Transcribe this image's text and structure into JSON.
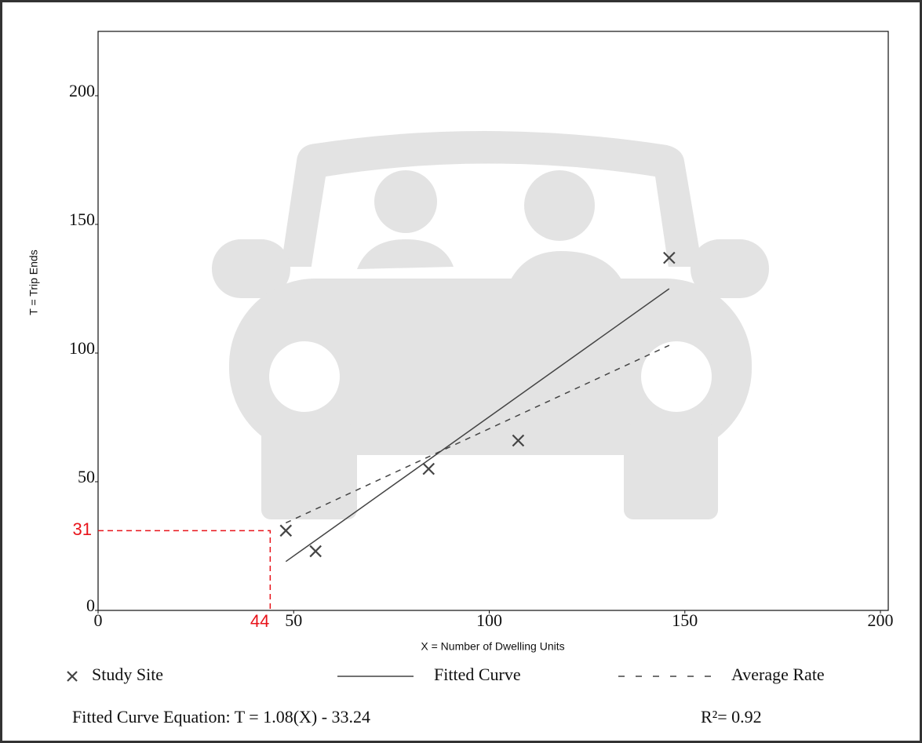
{
  "chart_data": {
    "type": "scatter",
    "x_label": "X = Number of Dwelling Units",
    "y_label": "T = Trip Ends",
    "xlim": [
      0,
      202
    ],
    "ylim": [
      0,
      225
    ],
    "xticks": [
      0,
      50,
      100,
      150,
      200
    ],
    "yticks": [
      0,
      50,
      100,
      150,
      200
    ],
    "series": [
      {
        "name": "Study Site",
        "style": "marker",
        "color": "#444444",
        "x": [
          48,
          55.6,
          84.5,
          107.4,
          146
        ],
        "values": [
          31,
          23,
          55,
          66,
          137
        ]
      },
      {
        "name": "Fitted Curve",
        "style": "solid",
        "color": "#444444",
        "x": [
          48,
          146
        ],
        "values": [
          19,
          125
        ]
      },
      {
        "name": "Average Rate",
        "style": "dashed",
        "color": "#444444",
        "x": [
          48,
          146
        ],
        "values": [
          34,
          103
        ]
      }
    ],
    "marker_point": {
      "x": 44,
      "y": 31,
      "color": "#e8141b"
    },
    "equation": "Fitted Curve Equation: T = 1.08(X) - 33.24",
    "r_squared": "R²= 0.92"
  }
}
